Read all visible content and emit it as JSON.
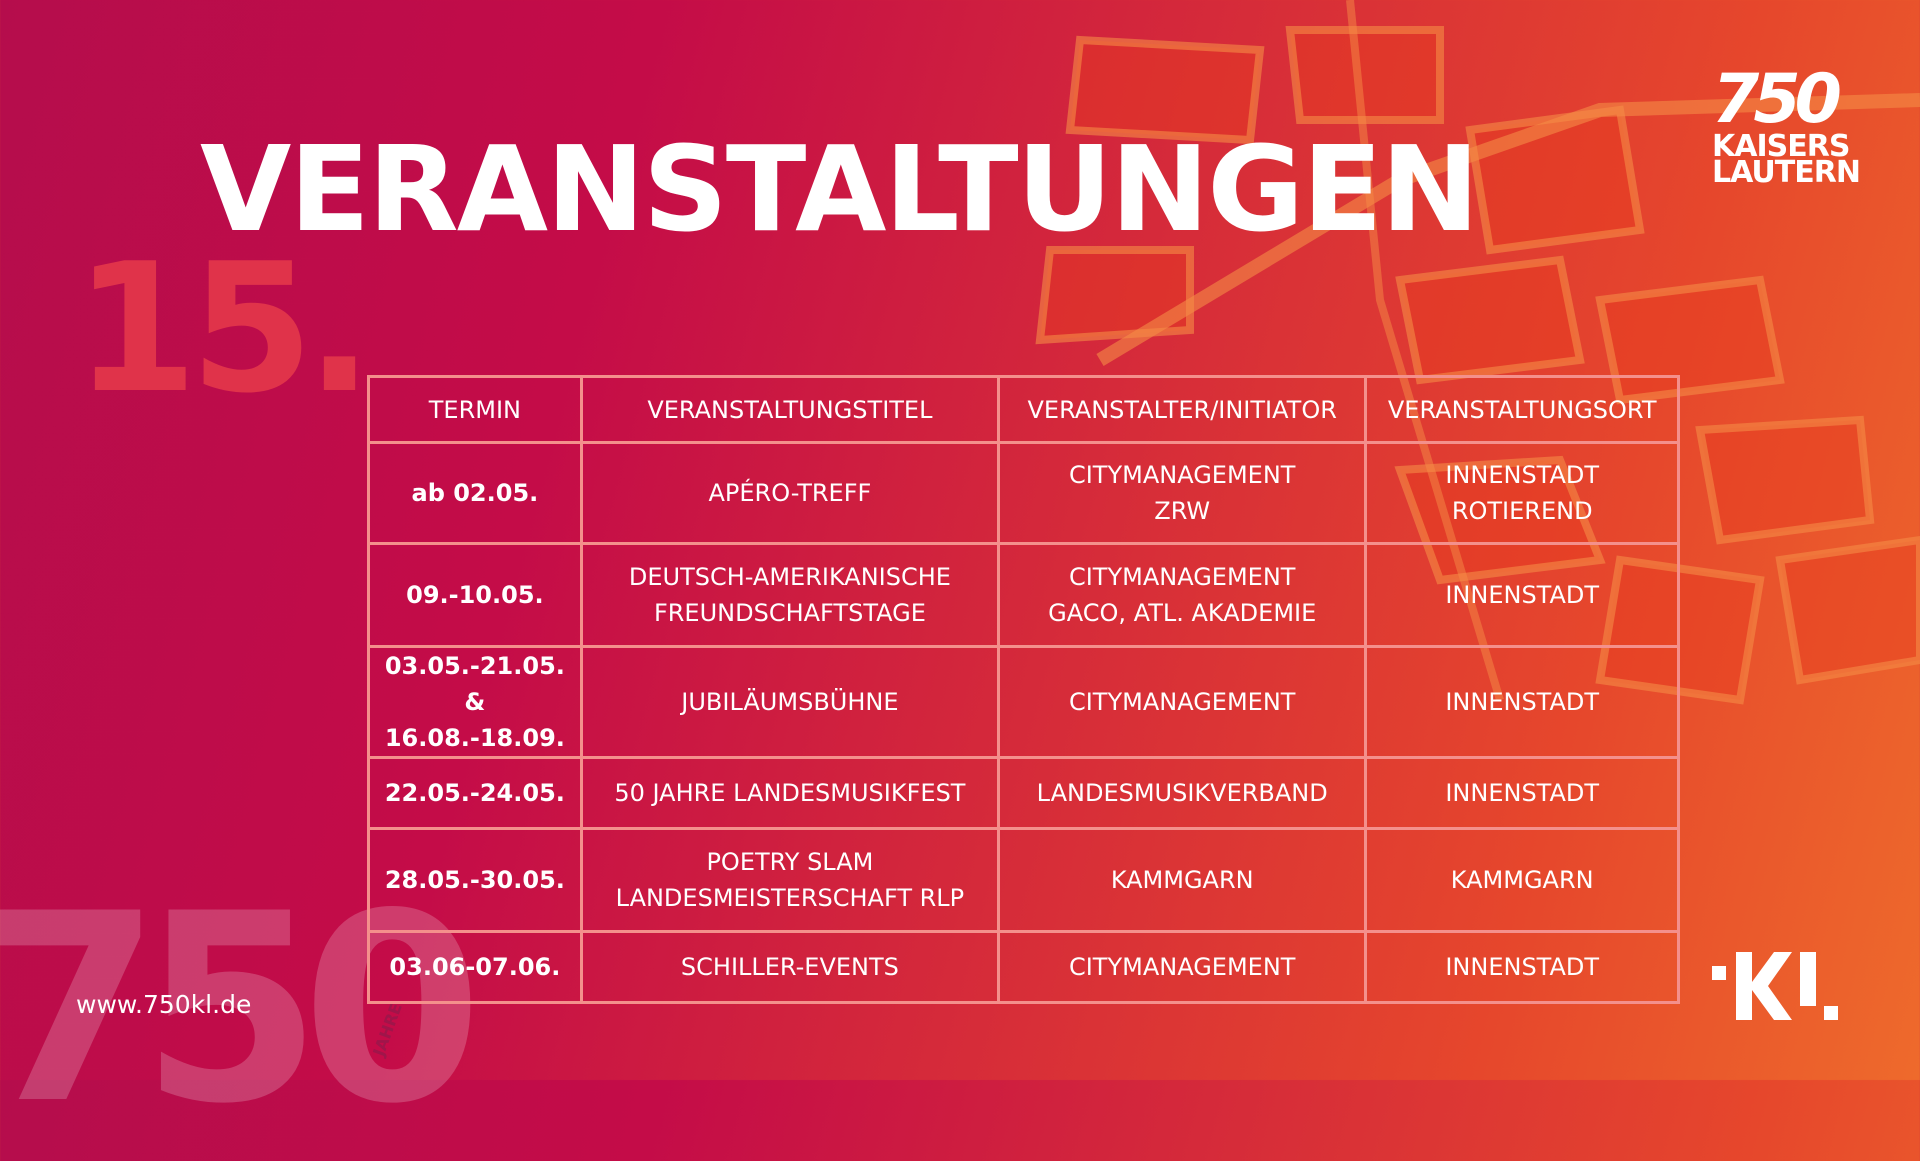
{
  "title": "VERANSTALTUNGEN",
  "day": "15.",
  "logo": {
    "number": "750",
    "line1": "KAISERS",
    "line2": "LAUTERN",
    "jahre": "JAHRE"
  },
  "website": "www.750kl.de",
  "table": {
    "headers": [
      "TERMIN",
      "VERANSTALTUNGSTITEL",
      "VERANSTALTER/INITIATOR",
      "VERANSTALTUNGSORT"
    ],
    "rows": [
      {
        "date": [
          "ab 02.05."
        ],
        "title": [
          "APÉRO-TREFF"
        ],
        "org": [
          "CITYMANAGEMENT",
          "ZRW"
        ],
        "place": [
          "INNENSTADT",
          "ROTIEREND"
        ]
      },
      {
        "date": [
          "09.-10.05."
        ],
        "title": [
          "DEUTSCH-AMERIKANISCHE",
          "FREUNDSCHAFTSTAGE"
        ],
        "org": [
          "CITYMANAGEMENT",
          "GACO, ATL. AKADEMIE"
        ],
        "place": [
          "INNENSTADT"
        ]
      },
      {
        "date": [
          "03.05.-21.05. &",
          "16.08.-18.09."
        ],
        "title": [
          "JUBILÄUMSBÜHNE"
        ],
        "org": [
          "CITYMANAGEMENT"
        ],
        "place": [
          "INNENSTADT"
        ]
      },
      {
        "date": [
          "22.05.-24.05."
        ],
        "title": [
          "50 JAHRE LANDESMUSIKFEST"
        ],
        "org": [
          "LANDESMUSIKVERBAND"
        ],
        "place": [
          "INNENSTADT"
        ]
      },
      {
        "date": [
          "28.05.-30.05."
        ],
        "title": [
          "POETRY SLAM",
          "LANDESMEISTERSCHAFT RLP"
        ],
        "org": [
          "KAMMGARN"
        ],
        "place": [
          "KAMMGARN"
        ]
      },
      {
        "date": [
          "03.06-07.06."
        ],
        "title": [
          "SCHILLER-EVENTS"
        ],
        "org": [
          "CITYMANAGEMENT"
        ],
        "place": [
          "INNENSTADT"
        ]
      }
    ]
  }
}
